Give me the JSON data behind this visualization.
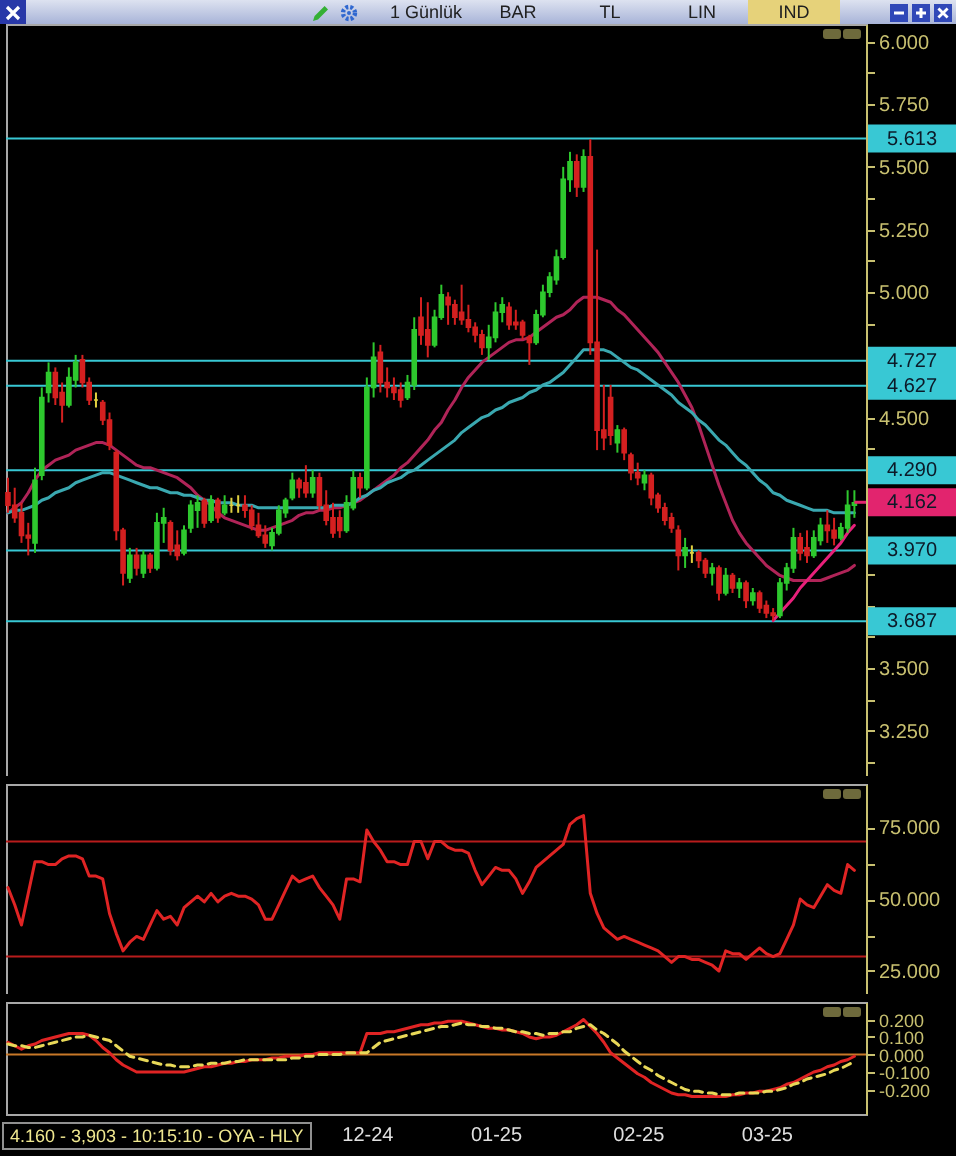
{
  "chart_data": [
    {
      "type": "candlestick",
      "annotations": [
        "1 Günlük",
        "BAR",
        "TL",
        "LIN",
        "IND",
        {
          "text": "4.162",
          "y": 4.162
        }
      ],
      "categories": [
        null,
        null,
        null,
        null,
        null,
        null,
        null,
        null,
        null,
        null,
        null,
        null,
        null,
        null,
        null,
        null,
        null,
        null,
        null,
        null,
        null,
        null,
        null,
        null,
        null,
        null,
        null,
        null,
        null,
        null,
        null,
        null,
        null,
        null,
        null,
        null,
        null,
        null,
        null,
        null,
        null,
        null,
        null,
        null,
        null,
        null,
        null,
        null,
        null,
        null,
        null,
        null,
        null,
        null,
        null,
        null,
        null,
        null,
        null,
        null,
        null,
        null,
        null,
        null,
        null,
        null,
        null,
        null,
        null,
        null,
        null,
        null,
        null,
        null,
        null,
        null,
        null,
        null,
        null,
        null,
        null,
        null,
        null,
        null,
        null,
        null,
        null,
        null,
        null,
        null,
        null,
        null,
        null,
        null,
        null,
        null,
        null,
        null,
        null,
        null,
        null,
        null,
        null,
        null,
        null,
        null,
        null,
        null,
        null,
        null,
        null,
        null,
        null,
        null,
        null,
        null,
        null,
        null,
        null,
        null,
        null,
        null,
        null,
        null,
        null,
        null
      ],
      "ohlc": [
        [
          4.2,
          4.26,
          4.12,
          4.15
        ],
        [
          4.15,
          4.22,
          4.08,
          4.1
        ],
        [
          4.12,
          4.16,
          4.0,
          4.03
        ],
        [
          4.03,
          4.08,
          3.95,
          4.02
        ],
        [
          4.0,
          4.3,
          3.96,
          4.25
        ],
        [
          4.27,
          4.62,
          4.25,
          4.58
        ],
        [
          4.6,
          4.72,
          4.56,
          4.68
        ],
        [
          4.68,
          4.7,
          4.55,
          4.58
        ],
        [
          4.6,
          4.64,
          4.48,
          4.55
        ],
        [
          4.55,
          4.7,
          4.54,
          4.66
        ],
        [
          4.65,
          4.75,
          4.62,
          4.72
        ],
        [
          4.73,
          4.75,
          4.62,
          4.64
        ],
        [
          4.64,
          4.66,
          4.55,
          4.57
        ],
        [
          4.57,
          4.6,
          4.54,
          4.57
        ],
        [
          4.56,
          4.57,
          4.47,
          4.49
        ],
        [
          4.49,
          4.52,
          4.37,
          4.39
        ],
        [
          4.36,
          4.37,
          4.01,
          4.05
        ],
        [
          4.05,
          4.06,
          3.83,
          3.88
        ],
        [
          3.86,
          3.98,
          3.84,
          3.95
        ],
        [
          3.95,
          3.98,
          3.87,
          3.9
        ],
        [
          3.88,
          3.97,
          3.86,
          3.95
        ],
        [
          3.95,
          3.96,
          3.88,
          3.9
        ],
        [
          3.9,
          4.12,
          3.89,
          4.08
        ],
        [
          4.08,
          4.14,
          4.0,
          4.1
        ],
        [
          4.08,
          4.09,
          3.95,
          3.97
        ],
        [
          3.99,
          4.05,
          3.93,
          3.95
        ],
        [
          3.96,
          4.07,
          3.95,
          4.05
        ],
        [
          4.06,
          4.17,
          4.04,
          4.15
        ],
        [
          4.13,
          4.19,
          4.06,
          4.16
        ],
        [
          4.17,
          4.18,
          4.06,
          4.08
        ],
        [
          4.09,
          4.19,
          4.08,
          4.17
        ],
        [
          4.17,
          4.18,
          4.08,
          4.1
        ],
        [
          4.12,
          4.19,
          4.11,
          4.15
        ],
        [
          4.15,
          4.18,
          4.12,
          4.15
        ],
        [
          4.15,
          4.19,
          4.12,
          4.15
        ],
        [
          4.15,
          4.19,
          4.1,
          4.13
        ],
        [
          4.13,
          4.15,
          4.05,
          4.07
        ],
        [
          4.07,
          4.12,
          4.02,
          4.03
        ],
        [
          4.03,
          4.07,
          3.98,
          4.0
        ],
        [
          3.99,
          4.06,
          3.97,
          4.04
        ],
        [
          4.04,
          4.15,
          4.03,
          4.13
        ],
        [
          4.12,
          4.18,
          4.1,
          4.17
        ],
        [
          4.18,
          4.28,
          4.17,
          4.25
        ],
        [
          4.25,
          4.26,
          4.18,
          4.22
        ],
        [
          4.24,
          4.31,
          4.18,
          4.2
        ],
        [
          4.2,
          4.29,
          4.18,
          4.26
        ],
        [
          4.26,
          4.28,
          4.13,
          4.15
        ],
        [
          4.15,
          4.21,
          4.07,
          4.09
        ],
        [
          4.1,
          4.16,
          4.02,
          4.04
        ],
        [
          4.1,
          4.13,
          4.02,
          4.05
        ],
        [
          4.05,
          4.19,
          4.04,
          4.16
        ],
        [
          4.14,
          4.29,
          4.13,
          4.26
        ],
        [
          4.26,
          4.28,
          4.18,
          4.22
        ],
        [
          4.22,
          4.66,
          4.21,
          4.62
        ],
        [
          4.62,
          4.8,
          4.58,
          4.74
        ],
        [
          4.76,
          4.79,
          4.6,
          4.64
        ],
        [
          4.64,
          4.7,
          4.58,
          4.62
        ],
        [
          4.62,
          4.66,
          4.57,
          4.6
        ],
        [
          4.61,
          4.64,
          4.54,
          4.57
        ],
        [
          4.58,
          4.67,
          4.57,
          4.64
        ],
        [
          4.63,
          4.9,
          4.61,
          4.85
        ],
        [
          4.9,
          4.98,
          4.79,
          4.83
        ],
        [
          4.85,
          4.96,
          4.74,
          4.79
        ],
        [
          4.79,
          4.93,
          4.78,
          4.9
        ],
        [
          4.9,
          5.03,
          4.89,
          4.99
        ],
        [
          4.98,
          5.0,
          4.87,
          4.95
        ],
        [
          4.95,
          4.97,
          4.87,
          4.9
        ],
        [
          4.92,
          5.03,
          4.87,
          4.89
        ],
        [
          4.89,
          4.95,
          4.84,
          4.86
        ],
        [
          4.86,
          4.88,
          4.8,
          4.83
        ],
        [
          4.83,
          4.85,
          4.75,
          4.78
        ],
        [
          4.78,
          4.87,
          4.73,
          4.82
        ],
        [
          4.82,
          4.96,
          4.8,
          4.92
        ],
        [
          4.92,
          4.98,
          4.88,
          4.95
        ],
        [
          4.94,
          4.96,
          4.85,
          4.87
        ],
        [
          4.88,
          4.93,
          4.85,
          4.87
        ],
        [
          4.88,
          4.89,
          4.81,
          4.83
        ],
        [
          4.82,
          4.83,
          4.71,
          4.8
        ],
        [
          4.8,
          4.93,
          4.79,
          4.91
        ],
        [
          4.91,
          5.03,
          4.9,
          5.0
        ],
        [
          5.0,
          5.08,
          4.98,
          5.06
        ],
        [
          5.05,
          5.17,
          5.03,
          5.14
        ],
        [
          5.14,
          5.5,
          5.13,
          5.45
        ],
        [
          5.45,
          5.56,
          5.4,
          5.52
        ],
        [
          5.52,
          5.55,
          5.38,
          5.42
        ],
        [
          5.42,
          5.57,
          5.4,
          5.54
        ],
        [
          5.54,
          5.61,
          4.75,
          4.8
        ],
        [
          4.8,
          5.17,
          4.37,
          4.45
        ],
        [
          4.45,
          4.63,
          4.37,
          4.42
        ],
        [
          4.58,
          4.63,
          4.39,
          4.43
        ],
        [
          4.4,
          4.47,
          4.36,
          4.45
        ],
        [
          4.45,
          4.46,
          4.33,
          4.36
        ],
        [
          4.35,
          4.36,
          4.25,
          4.28
        ],
        [
          4.28,
          4.32,
          4.23,
          4.26
        ],
        [
          4.24,
          4.29,
          4.21,
          4.27
        ],
        [
          4.27,
          4.28,
          4.15,
          4.18
        ],
        [
          4.19,
          4.2,
          4.12,
          4.14
        ],
        [
          4.14,
          4.16,
          4.07,
          4.09
        ],
        [
          4.1,
          4.12,
          4.04,
          4.06
        ],
        [
          4.05,
          4.07,
          3.89,
          3.95
        ],
        [
          3.95,
          4.02,
          3.9,
          3.98
        ],
        [
          3.96,
          3.99,
          3.92,
          3.96
        ],
        [
          3.96,
          3.97,
          3.9,
          3.93
        ],
        [
          3.93,
          3.94,
          3.86,
          3.88
        ],
        [
          3.88,
          3.92,
          3.83,
          3.9
        ],
        [
          3.9,
          3.91,
          3.77,
          3.8
        ],
        [
          3.8,
          3.9,
          3.79,
          3.87
        ],
        [
          3.87,
          3.88,
          3.8,
          3.82
        ],
        [
          3.82,
          3.86,
          3.78,
          3.84
        ],
        [
          3.84,
          3.85,
          3.74,
          3.77
        ],
        [
          3.77,
          3.82,
          3.75,
          3.8
        ],
        [
          3.8,
          3.81,
          3.72,
          3.74
        ],
        [
          3.75,
          3.77,
          3.7,
          3.72
        ],
        [
          3.72,
          3.74,
          3.69,
          3.71
        ],
        [
          3.71,
          3.86,
          3.7,
          3.84
        ],
        [
          3.84,
          3.92,
          3.81,
          3.9
        ],
        [
          3.9,
          4.06,
          3.88,
          4.02
        ],
        [
          4.02,
          4.04,
          3.93,
          3.96
        ],
        [
          3.98,
          4.05,
          3.92,
          3.95
        ],
        [
          3.95,
          4.05,
          3.94,
          4.02
        ],
        [
          4.01,
          4.1,
          3.99,
          4.07
        ],
        [
          4.07,
          4.13,
          4.0,
          4.05
        ],
        [
          4.05,
          4.1,
          3.99,
          4.02
        ],
        [
          4.02,
          4.08,
          4.01,
          4.06
        ],
        [
          4.06,
          4.21,
          4.04,
          4.15
        ],
        [
          4.15,
          4.21,
          4.1,
          4.16
        ]
      ],
      "colors": [
        "#d42020",
        "#d42020",
        "#d42020",
        "#d42020",
        "#2ec82e",
        "#2ec82e",
        "#2ec82e",
        "#d42020",
        "#d42020",
        "#2ec82e",
        "#2ec82e",
        "#d42020",
        "#d42020",
        "#e0d040",
        "#d42020",
        "#d42020",
        "#d42020",
        "#d42020",
        "#2ec82e",
        "#d42020",
        "#2ec82e",
        "#d42020",
        "#2ec82e",
        "#2ec82e",
        "#d42020",
        "#d42020",
        "#2ec82e",
        "#2ec82e",
        "#2ec82e",
        "#d42020",
        "#2ec82e",
        "#d42020",
        "#2ec82e",
        "#e0d040",
        "#e0d040",
        "#d42020",
        "#d42020",
        "#d42020",
        "#d42020",
        "#2ec82e",
        "#2ec82e",
        "#2ec82e",
        "#2ec82e",
        "#d42020",
        "#d42020",
        "#2ec82e",
        "#d42020",
        "#d42020",
        "#d42020",
        "#d42020",
        "#2ec82e",
        "#2ec82e",
        "#d42020",
        "#2ec82e",
        "#2ec82e",
        "#d42020",
        "#d42020",
        "#d42020",
        "#d42020",
        "#2ec82e",
        "#2ec82e",
        "#d42020",
        "#d42020",
        "#2ec82e",
        "#2ec82e",
        "#d42020",
        "#d42020",
        "#d42020",
        "#d42020",
        "#d42020",
        "#d42020",
        "#2ec82e",
        "#2ec82e",
        "#2ec82e",
        "#d42020",
        "#d42020",
        "#d42020",
        "#d42020",
        "#2ec82e",
        "#2ec82e",
        "#2ec82e",
        "#2ec82e",
        "#2ec82e",
        "#2ec82e",
        "#d42020",
        "#2ec82e",
        "#d42020",
        "#d42020",
        "#d42020",
        "#d42020",
        "#2ec82e",
        "#d42020",
        "#d42020",
        "#d42020",
        "#2ec82e",
        "#d42020",
        "#d42020",
        "#d42020",
        "#d42020",
        "#d42020",
        "#2ec82e",
        "#e0d040",
        "#d42020",
        "#d42020",
        "#2ec82e",
        "#d42020",
        "#2ec82e",
        "#d42020",
        "#2ec82e",
        "#d42020",
        "#2ec82e",
        "#d42020",
        "#d42020",
        "#d42020",
        "#2ec82e",
        "#2ec82e",
        "#2ec82e",
        "#d42020",
        "#d42020",
        "#2ec82e",
        "#2ec82e",
        "#d42020",
        "#d42020",
        "#2ec82e",
        "#2ec82e",
        "#2ec82e"
      ],
      "series": [
        {
          "type": "line",
          "color": "#b02458",
          "values": [
            4.12,
            4.14,
            4.16,
            4.2,
            4.25,
            4.29,
            4.31,
            4.33,
            4.34,
            4.35,
            4.37,
            4.38,
            4.39,
            4.4,
            4.4,
            4.39,
            4.37,
            4.35,
            4.33,
            4.31,
            4.3,
            4.3,
            4.29,
            4.28,
            4.27,
            4.26,
            4.24,
            4.22,
            4.19,
            4.17,
            4.15,
            4.12,
            4.1,
            4.09,
            4.08,
            4.07,
            4.06,
            4.05,
            4.05,
            4.06,
            4.07,
            4.08,
            4.09,
            4.11,
            4.12,
            4.12,
            4.13,
            4.13,
            4.14,
            4.14,
            4.15,
            4.16,
            4.17,
            4.19,
            4.21,
            4.23,
            4.25,
            4.27,
            4.3,
            4.32,
            4.35,
            4.38,
            4.41,
            4.45,
            4.48,
            4.53,
            4.57,
            4.62,
            4.66,
            4.69,
            4.72,
            4.74,
            4.76,
            4.78,
            4.8,
            4.81,
            4.81,
            4.82,
            4.84,
            4.86,
            4.88,
            4.9,
            4.91,
            4.93,
            4.96,
            4.98,
            4.98,
            4.98,
            4.97,
            4.96,
            4.93,
            4.91,
            4.88,
            4.85,
            4.82,
            4.79,
            4.76,
            4.72,
            4.68,
            4.64,
            4.59,
            4.54,
            4.47,
            4.39,
            4.31,
            4.23,
            4.16,
            4.09,
            4.04,
            4.0,
            3.97,
            3.94,
            3.91,
            3.89,
            3.87,
            3.86,
            3.85,
            3.85,
            3.85,
            3.85,
            3.85,
            3.86,
            3.87,
            3.88,
            3.89,
            3.91
          ]
        },
        {
          "type": "line",
          "color": "#3aa8b0",
          "values": [
            4.12,
            4.13,
            4.13,
            4.14,
            4.15,
            4.17,
            4.18,
            4.2,
            4.21,
            4.22,
            4.24,
            4.25,
            4.26,
            4.27,
            4.28,
            4.28,
            4.27,
            4.26,
            4.25,
            4.24,
            4.23,
            4.22,
            4.22,
            4.21,
            4.2,
            4.2,
            4.19,
            4.19,
            4.18,
            4.17,
            4.17,
            4.16,
            4.16,
            4.16,
            4.15,
            4.15,
            4.15,
            4.14,
            4.14,
            4.14,
            4.14,
            4.14,
            4.14,
            4.14,
            4.14,
            4.14,
            4.14,
            4.14,
            4.15,
            4.15,
            4.15,
            4.16,
            4.18,
            4.19,
            4.21,
            4.22,
            4.24,
            4.25,
            4.26,
            4.28,
            4.29,
            4.31,
            4.33,
            4.35,
            4.37,
            4.39,
            4.41,
            4.44,
            4.46,
            4.48,
            4.5,
            4.51,
            4.53,
            4.54,
            4.56,
            4.57,
            4.58,
            4.6,
            4.61,
            4.63,
            4.64,
            4.66,
            4.68,
            4.71,
            4.74,
            4.77,
            4.77,
            4.77,
            4.77,
            4.76,
            4.74,
            4.72,
            4.7,
            4.69,
            4.67,
            4.65,
            4.63,
            4.61,
            4.59,
            4.56,
            4.54,
            4.52,
            4.49,
            4.47,
            4.44,
            4.41,
            4.39,
            4.36,
            4.33,
            4.31,
            4.28,
            4.25,
            4.23,
            4.2,
            4.19,
            4.17,
            4.16,
            4.15,
            4.14,
            4.13,
            4.13,
            4.13,
            4.12,
            4.12,
            4.12,
            4.12
          ]
        },
        {
          "type": "line",
          "color": "#e8207a",
          "values": [
            null,
            null,
            null,
            null,
            null,
            null,
            null,
            null,
            null,
            null,
            null,
            null,
            null,
            null,
            null,
            null,
            null,
            null,
            null,
            null,
            null,
            null,
            null,
            null,
            null,
            null,
            null,
            null,
            null,
            null,
            null,
            null,
            null,
            null,
            null,
            null,
            null,
            null,
            null,
            null,
            null,
            null,
            null,
            null,
            null,
            null,
            null,
            null,
            null,
            null,
            null,
            null,
            null,
            null,
            null,
            null,
            null,
            null,
            null,
            null,
            null,
            null,
            null,
            null,
            null,
            null,
            null,
            null,
            null,
            null,
            null,
            null,
            null,
            null,
            null,
            null,
            null,
            null,
            null,
            null,
            null,
            null,
            null,
            null,
            null,
            null,
            null,
            null,
            null,
            null,
            null,
            null,
            null,
            null,
            null,
            null,
            null,
            null,
            null,
            null,
            null,
            null,
            null,
            null,
            null,
            null,
            null,
            null,
            null,
            null,
            null,
            null,
            null,
            3.69,
            3.72,
            3.75,
            3.78,
            3.82,
            3.85,
            3.88,
            3.91,
            3.94,
            3.97,
            4.0,
            4.04,
            4.07
          ]
        }
      ],
      "ylim": [
        3.07,
        6.07
      ],
      "yticks": [
        {
          "value": 6,
          "label": "6.000"
        },
        {
          "value": 5.875,
          "label": null
        },
        {
          "value": 5.75,
          "label": "5.750"
        },
        {
          "value": 5.625,
          "label": null
        },
        {
          "value": 5.5,
          "label": "5.500"
        },
        {
          "value": 5.375,
          "label": null
        },
        {
          "value": 5.25,
          "label": "5.250"
        },
        {
          "value": 5.125,
          "label": null
        },
        {
          "value": 5,
          "label": "5.000"
        },
        {
          "value": 4.875,
          "label": null
        },
        {
          "value": 4.75,
          "label": null
        },
        {
          "value": 4.625,
          "label": null
        },
        {
          "value": 4.5,
          "label": "4.500"
        },
        {
          "value": 4.375,
          "label": null
        },
        {
          "value": 4.25,
          "label": null
        },
        {
          "value": 4.125,
          "label": null
        },
        {
          "value": 4,
          "label": null
        },
        {
          "value": 3.875,
          "label": null
        },
        {
          "value": 3.75,
          "label": null
        },
        {
          "value": 3.625,
          "label": null
        },
        {
          "value": 3.5,
          "label": "3.500"
        },
        {
          "value": 3.375,
          "label": null
        },
        {
          "value": 3.25,
          "label": "3.250"
        },
        {
          "value": 3.125,
          "label": null
        }
      ],
      "ref_lines": [
        {
          "axis": "y",
          "value": 5.613,
          "label": "5.613",
          "color": "#38c8d4"
        },
        {
          "axis": "y",
          "value": 4.727,
          "label": "4.727",
          "color": "#38c8d4"
        },
        {
          "axis": "y",
          "value": 4.627,
          "label": "4.627",
          "color": "#38c8d4"
        },
        {
          "axis": "y",
          "value": 4.29,
          "label": "4.290",
          "color": "#38c8d4"
        },
        {
          "axis": "y",
          "value": 3.97,
          "label": "3.970",
          "color": "#38c8d4"
        },
        {
          "axis": "y",
          "value": 3.687,
          "label": "3.687",
          "color": "#38c8d4"
        }
      ]
    },
    {
      "type": "line",
      "categories": [
        null,
        null,
        null,
        null,
        null,
        null,
        null,
        null,
        null,
        null,
        null,
        null,
        null,
        null,
        null,
        null,
        null,
        null,
        null,
        null,
        null,
        null,
        null,
        null,
        null,
        null,
        null,
        null,
        null,
        null,
        null,
        null,
        null,
        null,
        null,
        null,
        null,
        null,
        null,
        null,
        null,
        null,
        null,
        null,
        null,
        null,
        null,
        null,
        null,
        null,
        null,
        null,
        null,
        null,
        null,
        null,
        null,
        null,
        null,
        null,
        null,
        null,
        null,
        null,
        null,
        null,
        null,
        null,
        null,
        null,
        null,
        null,
        null,
        null,
        null,
        null,
        null,
        null,
        null,
        null,
        null,
        null,
        null,
        null,
        null,
        null,
        null,
        null,
        null,
        null,
        null,
        null,
        null,
        null,
        null,
        null,
        null,
        null,
        null,
        null,
        null,
        null,
        null,
        null,
        null,
        null,
        null,
        null,
        null,
        null,
        null,
        null,
        null,
        null,
        null,
        null,
        null,
        null,
        null,
        null,
        null,
        null,
        null,
        null,
        null,
        null
      ],
      "series": [
        {
          "color": "#e02424",
          "values": [
            54,
            48,
            41,
            52,
            63,
            63,
            62,
            62,
            64,
            65,
            65,
            64,
            58,
            58,
            57,
            45,
            38,
            32,
            35,
            37,
            36,
            41,
            46,
            43,
            44,
            41,
            47,
            49,
            51,
            49,
            52,
            49,
            51,
            52,
            51,
            51,
            50,
            48,
            43,
            43,
            48,
            53,
            58,
            56,
            57,
            58,
            54,
            51,
            48,
            43,
            57,
            57,
            56,
            74,
            70,
            67,
            63,
            63,
            62,
            62,
            70,
            70,
            64,
            70,
            70,
            68,
            67,
            67,
            66,
            60,
            55,
            58,
            61,
            60,
            60,
            57,
            52,
            56,
            61,
            63,
            65,
            67,
            69,
            76,
            78,
            79,
            52,
            45,
            40,
            38,
            36,
            37,
            36,
            35,
            34,
            33,
            32,
            30,
            28,
            30,
            30,
            29,
            29,
            28,
            27,
            25,
            32,
            31,
            31,
            29,
            31,
            33,
            31,
            30,
            31,
            36,
            41,
            50,
            48,
            47,
            51,
            55,
            53,
            52,
            62,
            60
          ]
        }
      ],
      "ylim": [
        17,
        90
      ],
      "yticks": [
        {
          "value": 75,
          "label": "75.000"
        },
        {
          "value": 62.5,
          "label": null
        },
        {
          "value": 50,
          "label": "50.000"
        },
        {
          "value": 37.5,
          "label": null
        },
        {
          "value": 25,
          "label": "25.000"
        }
      ],
      "ref_lines": [
        {
          "axis": "y",
          "value": 70,
          "color": "#b81c1c"
        },
        {
          "axis": "y",
          "value": 30,
          "color": "#b81c1c"
        }
      ]
    },
    {
      "type": "line",
      "annotations": [
        "4.160 - 3,903 - 10:15:10 - OYA - HLY"
      ],
      "categories": [
        null,
        null,
        null,
        null,
        null,
        null,
        null,
        null,
        null,
        null,
        null,
        null,
        null,
        null,
        null,
        null,
        null,
        null,
        null,
        null,
        null,
        null,
        null,
        null,
        null,
        null,
        null,
        null,
        null,
        null,
        null,
        null,
        null,
        null,
        null,
        null,
        null,
        null,
        null,
        null,
        null,
        null,
        null,
        null,
        null,
        null,
        null,
        null,
        null,
        null,
        null,
        null,
        null,
        "12-24",
        null,
        null,
        null,
        null,
        null,
        null,
        null,
        null,
        null,
        null,
        null,
        null,
        null,
        null,
        null,
        null,
        null,
        null,
        "01-25",
        null,
        null,
        null,
        null,
        null,
        null,
        null,
        null,
        null,
        null,
        null,
        null,
        null,
        null,
        null,
        null,
        null,
        null,
        null,
        null,
        "02-25",
        null,
        null,
        null,
        null,
        null,
        null,
        null,
        null,
        null,
        null,
        null,
        null,
        null,
        null,
        null,
        null,
        null,
        null,
        "03-25",
        null,
        null,
        null,
        null,
        null,
        null,
        null,
        null,
        null,
        null,
        null,
        null,
        null
      ],
      "series": [
        {
          "color": "#e02424",
          "values": [
            0.07,
            0.05,
            0.03,
            0.05,
            0.06,
            0.08,
            0.09,
            0.1,
            0.11,
            0.12,
            0.12,
            0.12,
            0.11,
            0.08,
            0.04,
            0.01,
            -0.03,
            -0.06,
            -0.08,
            -0.1,
            -0.1,
            -0.1,
            -0.1,
            -0.1,
            -0.1,
            -0.1,
            -0.1,
            -0.09,
            -0.08,
            -0.07,
            -0.07,
            -0.06,
            -0.05,
            -0.05,
            -0.04,
            -0.04,
            -0.03,
            -0.03,
            -0.03,
            -0.02,
            -0.02,
            -0.01,
            -0.01,
            -0.01,
            0.0,
            0.0,
            0.01,
            0.01,
            0.01,
            0.01,
            0.01,
            0.01,
            0.01,
            0.12,
            0.12,
            0.12,
            0.13,
            0.13,
            0.14,
            0.15,
            0.16,
            0.17,
            0.17,
            0.18,
            0.18,
            0.19,
            0.19,
            0.19,
            0.18,
            0.17,
            0.16,
            0.15,
            0.15,
            0.14,
            0.14,
            0.13,
            0.12,
            0.1,
            0.09,
            0.1,
            0.1,
            0.11,
            0.13,
            0.15,
            0.17,
            0.2,
            0.16,
            0.12,
            0.07,
            0.01,
            -0.02,
            -0.05,
            -0.08,
            -0.11,
            -0.13,
            -0.16,
            -0.18,
            -0.2,
            -0.22,
            -0.23,
            -0.23,
            -0.24,
            -0.24,
            -0.24,
            -0.24,
            -0.24,
            -0.24,
            -0.23,
            -0.23,
            -0.22,
            -0.22,
            -0.21,
            -0.21,
            -0.2,
            -0.19,
            -0.17,
            -0.16,
            -0.14,
            -0.12,
            -0.1,
            -0.09,
            -0.07,
            -0.06,
            -0.04,
            -0.03,
            -0.01
          ]
        },
        {
          "color": "#e8d858",
          "line_style": "dashed",
          "values": [
            0.06,
            0.05,
            0.05,
            0.04,
            0.04,
            0.05,
            0.06,
            0.07,
            0.08,
            0.09,
            0.1,
            0.1,
            0.11,
            0.1,
            0.09,
            0.08,
            0.05,
            0.02,
            -0.01,
            -0.02,
            -0.03,
            -0.04,
            -0.05,
            -0.06,
            -0.06,
            -0.07,
            -0.07,
            -0.07,
            -0.06,
            -0.06,
            -0.05,
            -0.05,
            -0.05,
            -0.04,
            -0.04,
            -0.03,
            -0.03,
            -0.03,
            -0.03,
            -0.03,
            -0.03,
            -0.03,
            -0.02,
            -0.02,
            -0.01,
            -0.01,
            0.0,
            0.0,
            0.0,
            0.0,
            0.01,
            0.01,
            0.01,
            0.01,
            0.04,
            0.07,
            0.08,
            0.09,
            0.1,
            0.11,
            0.12,
            0.13,
            0.14,
            0.15,
            0.16,
            0.16,
            0.17,
            0.18,
            0.17,
            0.17,
            0.16,
            0.16,
            0.15,
            0.15,
            0.14,
            0.13,
            0.13,
            0.12,
            0.12,
            0.11,
            0.12,
            0.12,
            0.13,
            0.13,
            0.15,
            0.16,
            0.17,
            0.14,
            0.12,
            0.09,
            0.06,
            0.02,
            -0.01,
            -0.04,
            -0.07,
            -0.09,
            -0.12,
            -0.14,
            -0.16,
            -0.18,
            -0.2,
            -0.21,
            -0.21,
            -0.22,
            -0.22,
            -0.23,
            -0.23,
            -0.23,
            -0.22,
            -0.22,
            -0.22,
            -0.22,
            -0.21,
            -0.21,
            -0.2,
            -0.19,
            -0.17,
            -0.16,
            -0.14,
            -0.13,
            -0.12,
            -0.11,
            -0.09,
            -0.08,
            -0.06,
            -0.04
          ]
        }
      ],
      "ylim": [
        -0.34,
        0.3
      ],
      "yticks": [
        {
          "value": 0.2,
          "label": "0.200"
        },
        {
          "value": 0.1,
          "label": "0.100"
        },
        {
          "value": 0,
          "label": "0.000"
        },
        {
          "value": -0.1,
          "label": "-0.100"
        },
        {
          "value": -0.2,
          "label": "-0.200"
        }
      ],
      "ref_lines": [
        {
          "axis": "y",
          "value": 0,
          "color": "#c87828"
        }
      ]
    }
  ]
}
